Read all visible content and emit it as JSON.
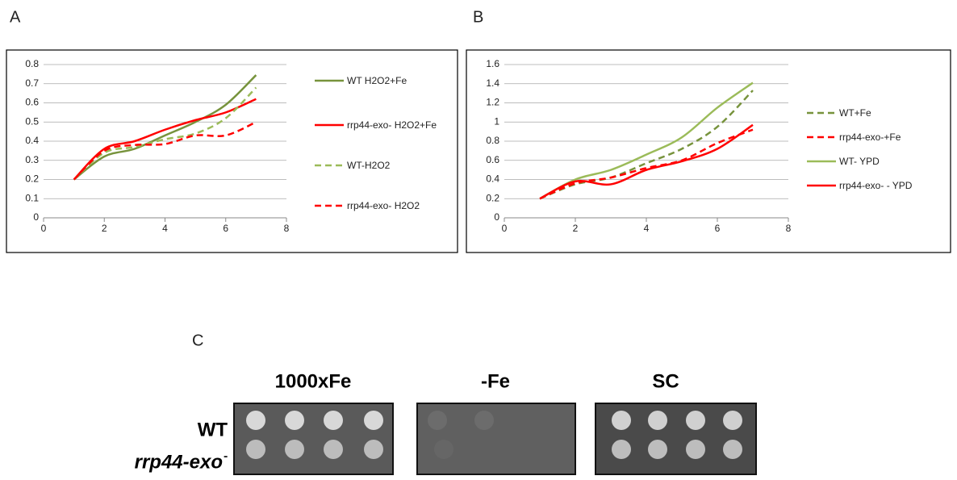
{
  "panel_a": "A",
  "panel_b": "B",
  "panel_c": "C",
  "chart_data": [
    {
      "type": "line",
      "xlim": [
        0,
        8
      ],
      "xticks": [
        0,
        2,
        4,
        6,
        8
      ],
      "ylim": [
        0,
        0.8
      ],
      "yticks": [
        0,
        0.1,
        0.2,
        0.3,
        0.4,
        0.5,
        0.6,
        0.7,
        0.8
      ],
      "grid": true,
      "smooth": true,
      "legend": "right",
      "x": [
        1,
        2,
        3,
        4,
        5,
        6,
        7
      ],
      "series": [
        {
          "name": "WT  H2O2+Fe",
          "color": "#77933c",
          "dashed": false,
          "values": [
            0.2,
            0.32,
            0.36,
            0.43,
            0.5,
            0.59,
            0.745
          ]
        },
        {
          "name": "rrp44-exo- H2O2+Fe",
          "color": "#ff0000",
          "dashed": false,
          "values": [
            0.2,
            0.36,
            0.4,
            0.46,
            0.51,
            0.55,
            0.62
          ]
        },
        {
          "name": "WT-H2O2",
          "color": "#9bbb59",
          "dashed": true,
          "values": [
            0.2,
            0.34,
            0.37,
            0.41,
            0.44,
            0.52,
            0.68
          ]
        },
        {
          "name": "rrp44-exo- H2O2",
          "color": "#ff0000",
          "dashed": true,
          "values": [
            0.2,
            0.35,
            0.38,
            0.385,
            0.43,
            0.43,
            0.5
          ]
        }
      ]
    },
    {
      "type": "line",
      "xlim": [
        0,
        8
      ],
      "xticks": [
        0,
        2,
        4,
        6,
        8
      ],
      "ylim": [
        0,
        1.6
      ],
      "yticks": [
        0,
        0.2,
        0.4,
        0.6,
        0.8,
        1,
        1.2,
        1.4,
        1.6
      ],
      "grid": true,
      "smooth": true,
      "legend": "right",
      "x": [
        1,
        2,
        3,
        4,
        5,
        6,
        7
      ],
      "series": [
        {
          "name": "WT+Fe",
          "color": "#77933c",
          "dashed": true,
          "values": [
            0.2,
            0.35,
            0.42,
            0.57,
            0.72,
            0.95,
            1.33
          ]
        },
        {
          "name": "rrp44-exo-+Fe",
          "color": "#ff0000",
          "dashed": true,
          "values": [
            0.2,
            0.36,
            0.42,
            0.52,
            0.6,
            0.78,
            0.92
          ]
        },
        {
          "name": "WT- YPD",
          "color": "#9bbb59",
          "dashed": false,
          "values": [
            0.2,
            0.4,
            0.5,
            0.66,
            0.84,
            1.15,
            1.41
          ]
        },
        {
          "name": "rrp44-exo-  - YPD",
          "color": "#ff0000",
          "dashed": false,
          "values": [
            0.2,
            0.38,
            0.35,
            0.5,
            0.59,
            0.72,
            0.97
          ]
        }
      ]
    }
  ],
  "plates": {
    "columns": [
      "1000xFe",
      "-Fe",
      "SC"
    ],
    "rows": [
      "WT",
      "rrp44-exo"
    ],
    "row_superscript": "-"
  }
}
